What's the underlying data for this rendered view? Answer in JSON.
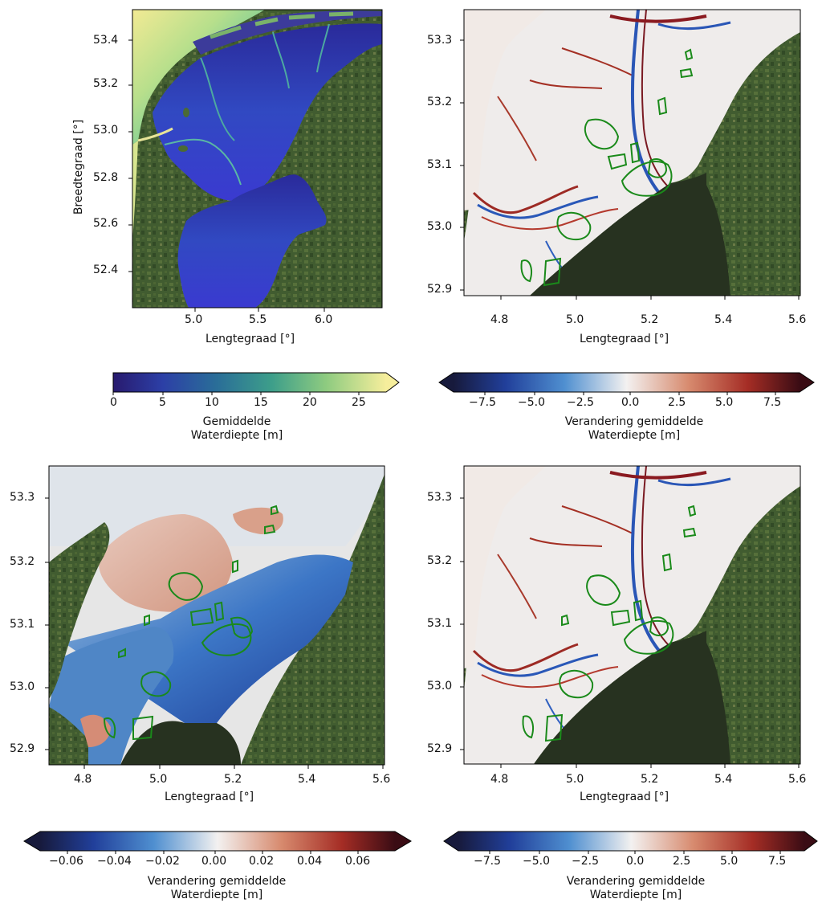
{
  "panels": [
    {
      "id": "a",
      "xlabel": "Lengtegraad [°]",
      "ylabel": "Breedtegraad [°]",
      "xticks": [
        "5.0",
        "5.5",
        "6.0"
      ],
      "yticks": [
        "53.4",
        "53.2",
        "53.0",
        "52.8",
        "52.6",
        "52.4"
      ],
      "colorbar": {
        "label_line1": "Gemiddelde",
        "label_line2": "Waterdiepte [m]",
        "ticks": [
          "0",
          "5",
          "10",
          "15",
          "20",
          "25"
        ],
        "colormap": "deep (navy-blue-green-yellow)",
        "range": [
          0,
          28
        ],
        "extend": "max"
      }
    },
    {
      "id": "b",
      "xlabel": "Lengtegraad [°]",
      "xticks": [
        "4.8",
        "5.0",
        "5.2",
        "5.4",
        "5.6"
      ],
      "yticks": [
        "53.3",
        "53.2",
        "53.1",
        "53.0",
        "52.9"
      ],
      "colorbar": {
        "label_line1": "Verandering gemiddelde",
        "label_line2": "Waterdiepte [m]",
        "ticks": [
          "−7.5",
          "−5.0",
          "−2.5",
          "0.0",
          "2.5",
          "5.0",
          "7.5"
        ],
        "colormap": "balance (blue-white-red)",
        "range": [
          -9,
          9
        ],
        "extend": "both"
      }
    },
    {
      "id": "c",
      "xlabel": "Lengtegraad [°]",
      "xticks": [
        "4.8",
        "5.0",
        "5.2",
        "5.4",
        "5.6"
      ],
      "yticks": [
        "53.3",
        "53.2",
        "53.1",
        "53.0",
        "52.9"
      ],
      "colorbar": {
        "label_line1": "Verandering gemiddelde",
        "label_line2": "Waterdiepte [m]",
        "ticks": [
          "−0.06",
          "−0.04",
          "−0.02",
          "0.00",
          "0.02",
          "0.04",
          "0.06"
        ],
        "colormap": "balance (blue-white-red)",
        "range": [
          -0.075,
          0.075
        ],
        "extend": "both"
      }
    },
    {
      "id": "d",
      "xlabel": "Lengtegraad [°]",
      "xticks": [
        "4.8",
        "5.0",
        "5.2",
        "5.4",
        "5.6"
      ],
      "yticks": [
        "53.3",
        "53.2",
        "53.1",
        "53.0",
        "52.9"
      ],
      "colorbar": {
        "label_line1": "Verandering gemiddelde",
        "label_line2": "Waterdiepte [m]",
        "ticks": [
          "−7.5",
          "−5.0",
          "−2.5",
          "0.0",
          "2.5",
          "5.0",
          "7.5"
        ],
        "colormap": "balance (blue-white-red)",
        "range": [
          -9,
          9
        ],
        "extend": "both"
      }
    }
  ],
  "colors": {
    "land": "#3f5a2e",
    "lake_dark": "#27311f",
    "contour": "#1a8a1a",
    "deep_navy": "#2a1f8c",
    "shallow_yellow": "#f2e88a"
  }
}
